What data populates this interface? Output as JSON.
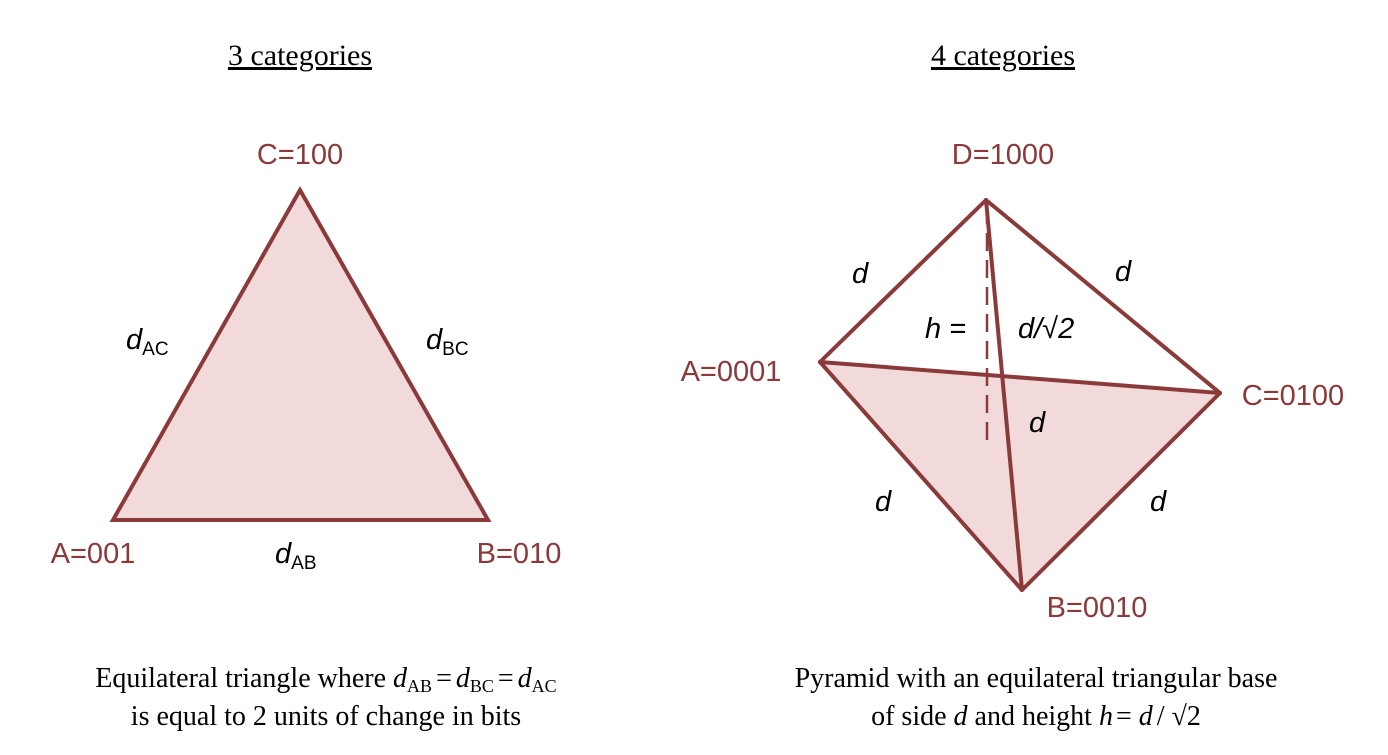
{
  "left_panel": {
    "title": "3 categories",
    "vertices": {
      "C": "C=100",
      "A": "A=001",
      "B": "B=010"
    },
    "edges": {
      "ac": {
        "main": "d",
        "sub": "AC"
      },
      "bc": {
        "main": "d",
        "sub": "BC"
      },
      "ab": {
        "main": "d",
        "sub": "AB"
      }
    },
    "caption": {
      "line1_prefix": "Equilateral triangle where ",
      "d": "d",
      "sub_ab": "AB",
      "sub_bc": "BC",
      "sub_ac": "AC",
      "eq": "=",
      "line2": "is equal to 2 units of change in bits"
    }
  },
  "right_panel": {
    "title": "4 categories",
    "vertices": {
      "D": "D=1000",
      "A": "A=0001",
      "C": "C=0100",
      "B": "B=0010"
    },
    "edges": {
      "da": "d",
      "dc": "d",
      "ab": "d",
      "cb": "d",
      "ac": "d",
      "h_label": "h =",
      "height_value": "d/√2"
    },
    "caption": {
      "line1": "Pyramid with an equilateral triangular base",
      "line2_prefix": "of side ",
      "d": "d",
      "line2_mid": " and height ",
      "h": "h",
      "eq": "= ",
      "d2": "d",
      "slash": "/ ",
      "sqrt": "√2"
    }
  },
  "colors": {
    "stroke": "#8b3a3a",
    "fill": "#f2dada",
    "label": "#8b3a3a"
  }
}
